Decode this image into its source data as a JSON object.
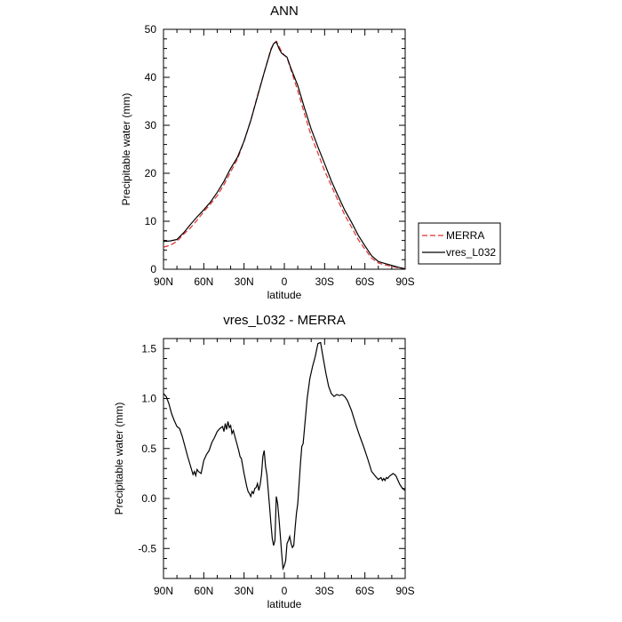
{
  "chart_data": [
    {
      "type": "line",
      "title": "ANN",
      "xlabel": "latitude",
      "ylabel": "Precipitable water (mm)",
      "xlim": [
        90,
        -90
      ],
      "ylim": [
        0,
        50
      ],
      "x_ticks": [
        90,
        60,
        30,
        0,
        -30,
        -60,
        -90
      ],
      "x_tick_labels": [
        "90N",
        "60N",
        "30N",
        "0",
        "30S",
        "60S",
        "90S"
      ],
      "y_ticks": [
        0,
        10,
        20,
        30,
        40,
        50
      ],
      "y_tick_labels": [
        "0",
        "10",
        "20",
        "30",
        "40",
        "50"
      ],
      "grid": false,
      "legend_position": "right",
      "series": [
        {
          "name": "MERRA",
          "color": "#e0302e",
          "dash": "dashed",
          "x": [
            90,
            85,
            80,
            75,
            70,
            65,
            60,
            55,
            50,
            45,
            40,
            35,
            30,
            25,
            20,
            15,
            10,
            8,
            6,
            4,
            2,
            0,
            -2,
            -5,
            -10,
            -15,
            -20,
            -25,
            -30,
            -35,
            -40,
            -45,
            -50,
            -55,
            -60,
            -65,
            -70,
            -75,
            -80,
            -85,
            -90
          ],
          "y": [
            4.6,
            5.0,
            5.8,
            7.3,
            8.6,
            10.2,
            12.0,
            13.6,
            15.3,
            17.6,
            20.3,
            22.9,
            26.7,
            31.0,
            36.2,
            41.0,
            45.9,
            47.0,
            47.5,
            46.5,
            45.3,
            44.6,
            44.1,
            41.5,
            37.2,
            32.4,
            27.8,
            24.2,
            20.5,
            17.4,
            14.3,
            11.3,
            8.8,
            6.2,
            4.2,
            2.3,
            1.3,
            0.9,
            0.6,
            0.3,
            0.1
          ]
        },
        {
          "name": "vres_L032",
          "color": "#000000",
          "dash": "solid",
          "x": [
            90,
            85,
            80,
            75,
            70,
            65,
            60,
            55,
            50,
            45,
            40,
            35,
            30,
            25,
            20,
            15,
            10,
            8,
            6,
            4,
            2,
            0,
            -2,
            -5,
            -10,
            -15,
            -20,
            -25,
            -30,
            -35,
            -40,
            -45,
            -50,
            -55,
            -60,
            -65,
            -70,
            -75,
            -80,
            -85,
            -90
          ],
          "y": [
            5.8,
            5.9,
            6.2,
            7.6,
            9.3,
            10.9,
            12.4,
            14.0,
            16.0,
            18.3,
            21.0,
            23.3,
            26.7,
            31.0,
            36.0,
            41.0,
            45.7,
            47.0,
            47.4,
            46.0,
            45.0,
            44.6,
            44.2,
            41.8,
            38.3,
            33.6,
            29.2,
            25.5,
            22.0,
            18.4,
            15.3,
            12.3,
            9.8,
            7.1,
            4.9,
            2.8,
            1.6,
            1.2,
            0.8,
            0.4,
            0.1
          ]
        }
      ]
    },
    {
      "type": "line",
      "title": "vres_L032 - MERRA",
      "xlabel": "latitude",
      "ylabel": "Precipitable water (mm)",
      "xlim": [
        90,
        -90
      ],
      "ylim": [
        -0.8,
        1.6
      ],
      "x_ticks": [
        90,
        60,
        30,
        0,
        -30,
        -60,
        -90
      ],
      "x_tick_labels": [
        "90N",
        "60N",
        "30N",
        "0",
        "30S",
        "60S",
        "90S"
      ],
      "y_ticks": [
        -0.5,
        0.0,
        0.5,
        1.0,
        1.5
      ],
      "y_tick_labels": [
        "-0.5",
        "0.0",
        "0.5",
        "1.0",
        "1.5"
      ],
      "grid": false,
      "series": [
        {
          "color": "#000000",
          "dash": "solid",
          "x": [
            90,
            88,
            86,
            84,
            82,
            80,
            78,
            76,
            74,
            72,
            70,
            68,
            67,
            66,
            65,
            64,
            62,
            60,
            58,
            56,
            54,
            52,
            50,
            48,
            46,
            45,
            44,
            43,
            42,
            41,
            40,
            39,
            38,
            36,
            34,
            33,
            32,
            30,
            28,
            27,
            26,
            25,
            24,
            23,
            22,
            21,
            20,
            19,
            18,
            17,
            16,
            15,
            14,
            13,
            12,
            11,
            10,
            9,
            8,
            7,
            6,
            5,
            4,
            3,
            2,
            1,
            0,
            -1,
            -2,
            -3,
            -4,
            -5,
            -6,
            -7,
            -8,
            -9,
            -10,
            -11,
            -12,
            -13,
            -14,
            -15,
            -17,
            -19,
            -21,
            -23,
            -25,
            -27,
            -29,
            -31,
            -33,
            -35,
            -37,
            -39,
            -41,
            -43,
            -45,
            -47,
            -50,
            -53,
            -56,
            -59,
            -62,
            -65,
            -68,
            -70,
            -72,
            -73,
            -74,
            -75,
            -76,
            -77,
            -78,
            -79,
            -80,
            -81,
            -82,
            -83,
            -84,
            -85,
            -86,
            -87,
            -88,
            -89,
            -90
          ],
          "y": [
            1.05,
            1.02,
            0.95,
            0.85,
            0.78,
            0.72,
            0.7,
            0.62,
            0.52,
            0.42,
            0.33,
            0.24,
            0.27,
            0.23,
            0.29,
            0.27,
            0.25,
            0.38,
            0.44,
            0.48,
            0.56,
            0.61,
            0.67,
            0.7,
            0.72,
            0.67,
            0.75,
            0.69,
            0.77,
            0.71,
            0.73,
            0.65,
            0.68,
            0.58,
            0.48,
            0.42,
            0.4,
            0.25,
            0.12,
            0.07,
            0.05,
            0.02,
            0.07,
            0.05,
            0.1,
            0.11,
            0.15,
            0.08,
            0.14,
            0.24,
            0.42,
            0.48,
            0.32,
            0.24,
            0.08,
            -0.08,
            -0.25,
            -0.4,
            -0.47,
            -0.42,
            0.02,
            -0.05,
            -0.2,
            -0.37,
            -0.55,
            -0.7,
            -0.67,
            -0.62,
            -0.45,
            -0.42,
            -0.38,
            -0.45,
            -0.49,
            -0.47,
            -0.3,
            -0.15,
            -0.05,
            0.15,
            0.35,
            0.52,
            0.55,
            0.7,
            1.0,
            1.2,
            1.32,
            1.42,
            1.55,
            1.56,
            1.4,
            1.25,
            1.12,
            1.05,
            1.02,
            1.04,
            1.03,
            1.04,
            1.02,
            0.98,
            0.88,
            0.75,
            0.63,
            0.52,
            0.4,
            0.27,
            0.22,
            0.19,
            0.21,
            0.18,
            0.2,
            0.18,
            0.21,
            0.2,
            0.22,
            0.23,
            0.24,
            0.25,
            0.24,
            0.23,
            0.2,
            0.17,
            0.14,
            0.12,
            0.1,
            0.09,
            0.08
          ]
        }
      ]
    }
  ]
}
